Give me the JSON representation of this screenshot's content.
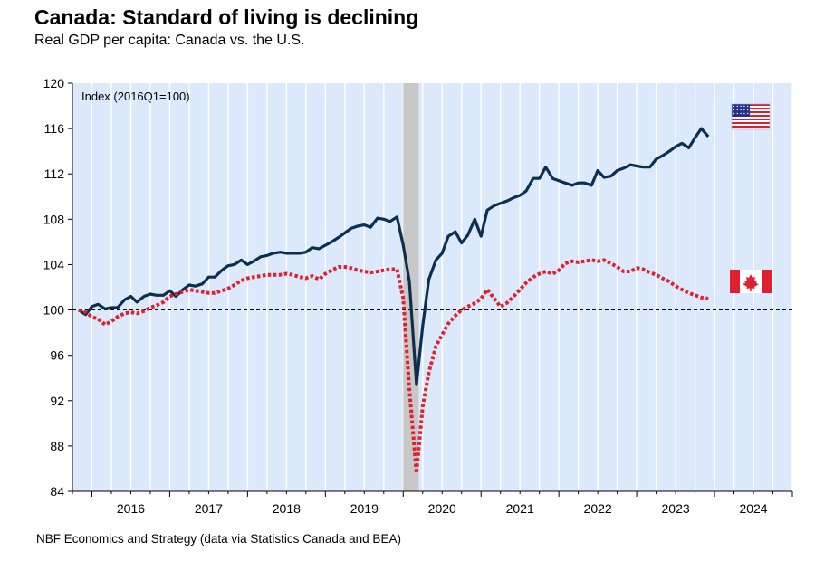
{
  "title": "Canada: Standard of living is declining",
  "subtitle": "Real GDP per capita: Canada vs. the U.S.",
  "source": "NBF Economics and Strategy (data via Statistics Canada and BEA)",
  "chart_data": {
    "type": "line",
    "title": "Canada: Standard of living is declining",
    "subtitle": "Real GDP per capita: Canada vs. the U.S.",
    "ylabel": "Index (2016Q1=100)",
    "xlabel": "",
    "ylim": [
      84,
      120
    ],
    "yticks": [
      84,
      88,
      92,
      96,
      100,
      104,
      108,
      112,
      116,
      120
    ],
    "xlim": [
      2015.75,
      2025.0
    ],
    "xticks": [
      {
        "label": "2016",
        "pos": 2016.5
      },
      {
        "label": "2017",
        "pos": 2017.5
      },
      {
        "label": "2018",
        "pos": 2018.5
      },
      {
        "label": "2019",
        "pos": 2019.5
      },
      {
        "label": "2020",
        "pos": 2020.5
      },
      {
        "label": "2021",
        "pos": 2021.5
      },
      {
        "label": "2022",
        "pos": 2022.5
      },
      {
        "label": "2023",
        "pos": 2023.5
      },
      {
        "label": "2024",
        "pos": 2024.5
      }
    ],
    "reference_line": 100,
    "recession_shading": [
      2020.0,
      2020.2
    ],
    "series": [
      {
        "name": "U.S.",
        "style": "solid",
        "color": "#0d2f4f",
        "legend_icon": "us-flag",
        "points": [
          [
            2015.83,
            100.0
          ],
          [
            2015.92,
            99.6
          ],
          [
            2016.0,
            100.3
          ],
          [
            2016.08,
            100.5
          ],
          [
            2016.17,
            100.1
          ],
          [
            2016.25,
            100.2
          ],
          [
            2016.33,
            100.2
          ],
          [
            2016.42,
            100.9
          ],
          [
            2016.5,
            101.2
          ],
          [
            2016.58,
            100.7
          ],
          [
            2016.67,
            101.2
          ],
          [
            2016.75,
            101.4
          ],
          [
            2016.83,
            101.3
          ],
          [
            2016.92,
            101.3
          ],
          [
            2017.0,
            101.7
          ],
          [
            2017.08,
            101.2
          ],
          [
            2017.17,
            101.8
          ],
          [
            2017.25,
            102.2
          ],
          [
            2017.33,
            102.1
          ],
          [
            2017.42,
            102.3
          ],
          [
            2017.5,
            102.9
          ],
          [
            2017.58,
            102.9
          ],
          [
            2017.67,
            103.5
          ],
          [
            2017.75,
            103.9
          ],
          [
            2017.83,
            104.0
          ],
          [
            2017.92,
            104.4
          ],
          [
            2018.0,
            104.0
          ],
          [
            2018.08,
            104.3
          ],
          [
            2018.17,
            104.7
          ],
          [
            2018.25,
            104.8
          ],
          [
            2018.33,
            105.0
          ],
          [
            2018.42,
            105.1
          ],
          [
            2018.5,
            105.0
          ],
          [
            2018.58,
            105.0
          ],
          [
            2018.67,
            105.0
          ],
          [
            2018.75,
            105.1
          ],
          [
            2018.83,
            105.5
          ],
          [
            2018.92,
            105.4
          ],
          [
            2019.0,
            105.7
          ],
          [
            2019.08,
            106.0
          ],
          [
            2019.17,
            106.4
          ],
          [
            2019.25,
            106.8
          ],
          [
            2019.33,
            107.2
          ],
          [
            2019.42,
            107.4
          ],
          [
            2019.5,
            107.5
          ],
          [
            2019.58,
            107.3
          ],
          [
            2019.67,
            108.1
          ],
          [
            2019.75,
            108.0
          ],
          [
            2019.83,
            107.8
          ],
          [
            2019.92,
            108.2
          ],
          [
            2020.0,
            105.7
          ],
          [
            2020.08,
            102.5
          ],
          [
            2020.17,
            93.4
          ],
          [
            2020.25,
            98.6
          ],
          [
            2020.33,
            102.7
          ],
          [
            2020.42,
            104.4
          ],
          [
            2020.5,
            105.0
          ],
          [
            2020.58,
            106.5
          ],
          [
            2020.67,
            106.9
          ],
          [
            2020.75,
            105.9
          ],
          [
            2020.83,
            106.6
          ],
          [
            2020.92,
            108.0
          ],
          [
            2021.0,
            106.5
          ],
          [
            2021.08,
            108.8
          ],
          [
            2021.17,
            109.2
          ],
          [
            2021.25,
            109.4
          ],
          [
            2021.33,
            109.6
          ],
          [
            2021.42,
            109.9
          ],
          [
            2021.5,
            110.1
          ],
          [
            2021.58,
            110.5
          ],
          [
            2021.67,
            111.6
          ],
          [
            2021.75,
            111.6
          ],
          [
            2021.83,
            112.6
          ],
          [
            2021.92,
            111.6
          ],
          [
            2022.0,
            111.4
          ],
          [
            2022.08,
            111.2
          ],
          [
            2022.17,
            111.0
          ],
          [
            2022.25,
            111.2
          ],
          [
            2022.33,
            111.2
          ],
          [
            2022.42,
            111.0
          ],
          [
            2022.5,
            112.3
          ],
          [
            2022.58,
            111.7
          ],
          [
            2022.67,
            111.8
          ],
          [
            2022.75,
            112.3
          ],
          [
            2022.83,
            112.5
          ],
          [
            2022.92,
            112.8
          ],
          [
            2023.0,
            112.7
          ],
          [
            2023.08,
            112.6
          ],
          [
            2023.17,
            112.6
          ],
          [
            2023.25,
            113.3
          ],
          [
            2023.33,
            113.6
          ],
          [
            2023.42,
            114.0
          ],
          [
            2023.5,
            114.4
          ],
          [
            2023.58,
            114.7
          ],
          [
            2023.67,
            114.3
          ],
          [
            2023.75,
            115.2
          ],
          [
            2023.83,
            116.0
          ],
          [
            2023.92,
            115.3
          ]
        ]
      },
      {
        "name": "Canada",
        "style": "dotted",
        "color": "#e0202e",
        "legend_icon": "canada-flag",
        "points": [
          [
            2015.83,
            100.0
          ],
          [
            2015.92,
            99.8
          ],
          [
            2016.0,
            99.4
          ],
          [
            2016.08,
            99.2
          ],
          [
            2016.17,
            98.7
          ],
          [
            2016.25,
            99.0
          ],
          [
            2016.33,
            99.4
          ],
          [
            2016.42,
            99.7
          ],
          [
            2016.5,
            99.8
          ],
          [
            2016.58,
            99.7
          ],
          [
            2016.67,
            99.9
          ],
          [
            2016.75,
            100.2
          ],
          [
            2016.83,
            100.4
          ],
          [
            2016.92,
            100.7
          ],
          [
            2017.0,
            101.2
          ],
          [
            2017.08,
            101.4
          ],
          [
            2017.17,
            101.6
          ],
          [
            2017.25,
            101.8
          ],
          [
            2017.33,
            101.7
          ],
          [
            2017.42,
            101.6
          ],
          [
            2017.5,
            101.5
          ],
          [
            2017.58,
            101.5
          ],
          [
            2017.67,
            101.7
          ],
          [
            2017.75,
            101.9
          ],
          [
            2017.83,
            102.2
          ],
          [
            2017.92,
            102.6
          ],
          [
            2018.0,
            102.8
          ],
          [
            2018.08,
            102.9
          ],
          [
            2018.17,
            103.0
          ],
          [
            2018.25,
            103.1
          ],
          [
            2018.33,
            103.1
          ],
          [
            2018.42,
            103.1
          ],
          [
            2018.5,
            103.2
          ],
          [
            2018.58,
            103.1
          ],
          [
            2018.67,
            102.9
          ],
          [
            2018.75,
            102.8
          ],
          [
            2018.83,
            103.0
          ],
          [
            2018.92,
            102.7
          ],
          [
            2019.0,
            103.2
          ],
          [
            2019.08,
            103.5
          ],
          [
            2019.17,
            103.8
          ],
          [
            2019.25,
            103.8
          ],
          [
            2019.33,
            103.7
          ],
          [
            2019.42,
            103.5
          ],
          [
            2019.5,
            103.4
          ],
          [
            2019.58,
            103.3
          ],
          [
            2019.67,
            103.4
          ],
          [
            2019.75,
            103.5
          ],
          [
            2019.83,
            103.6
          ],
          [
            2019.92,
            103.6
          ],
          [
            2020.0,
            101.0
          ],
          [
            2020.08,
            93.0
          ],
          [
            2020.17,
            85.6
          ],
          [
            2020.25,
            91.5
          ],
          [
            2020.33,
            94.5
          ],
          [
            2020.42,
            96.8
          ],
          [
            2020.5,
            97.8
          ],
          [
            2020.58,
            98.8
          ],
          [
            2020.67,
            99.5
          ],
          [
            2020.75,
            100.0
          ],
          [
            2020.83,
            100.3
          ],
          [
            2020.92,
            100.6
          ],
          [
            2021.0,
            101.0
          ],
          [
            2021.08,
            101.8
          ],
          [
            2021.17,
            101.0
          ],
          [
            2021.25,
            100.3
          ],
          [
            2021.33,
            100.6
          ],
          [
            2021.42,
            101.2
          ],
          [
            2021.5,
            101.8
          ],
          [
            2021.58,
            102.4
          ],
          [
            2021.67,
            102.9
          ],
          [
            2021.75,
            103.2
          ],
          [
            2021.83,
            103.4
          ],
          [
            2021.92,
            103.2
          ],
          [
            2022.0,
            103.5
          ],
          [
            2022.08,
            104.1
          ],
          [
            2022.17,
            104.3
          ],
          [
            2022.25,
            104.2
          ],
          [
            2022.33,
            104.3
          ],
          [
            2022.42,
            104.4
          ],
          [
            2022.5,
            104.3
          ],
          [
            2022.58,
            104.4
          ],
          [
            2022.67,
            104.1
          ],
          [
            2022.75,
            103.8
          ],
          [
            2022.83,
            103.4
          ],
          [
            2022.92,
            103.4
          ],
          [
            2023.0,
            103.7
          ],
          [
            2023.08,
            103.6
          ],
          [
            2023.17,
            103.3
          ],
          [
            2023.25,
            103.1
          ],
          [
            2023.33,
            102.8
          ],
          [
            2023.42,
            102.5
          ],
          [
            2023.5,
            102.1
          ],
          [
            2023.58,
            101.8
          ],
          [
            2023.67,
            101.5
          ],
          [
            2023.75,
            101.3
          ],
          [
            2023.83,
            101.1
          ],
          [
            2023.92,
            101.0
          ]
        ]
      }
    ]
  }
}
